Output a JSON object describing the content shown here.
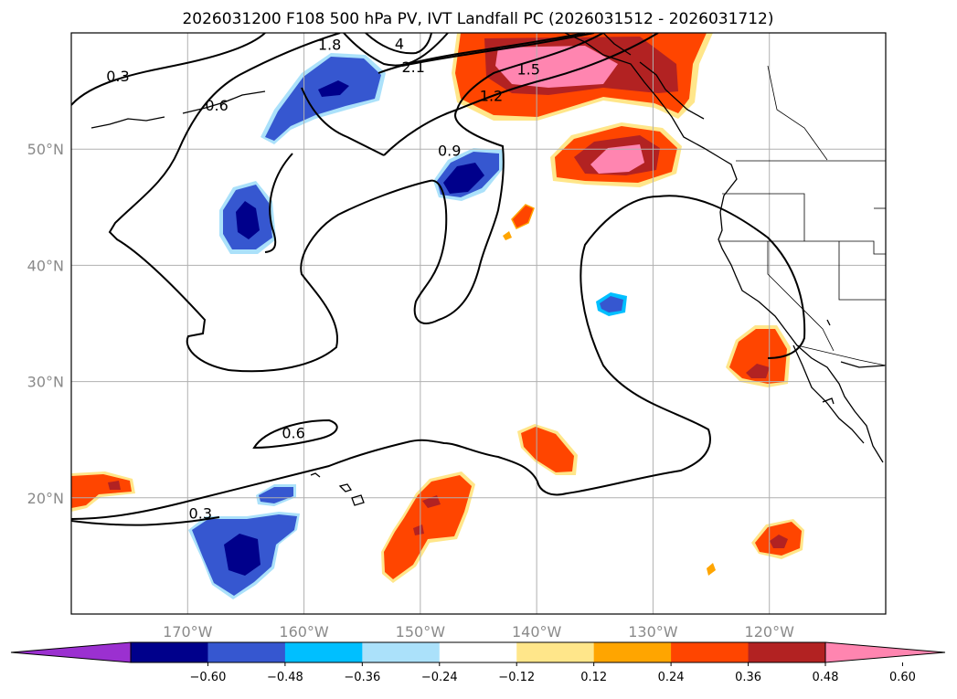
{
  "title": "2026031200 F108 500 hPa PV, IVT Landfall PC (2026031512 - 2026031712)",
  "map": {
    "lon_range": [
      -180,
      -110
    ],
    "lat_range": [
      10,
      60
    ],
    "lon_ticks": [
      {
        "lon": -170,
        "label": "170°W"
      },
      {
        "lon": -160,
        "label": "160°W"
      },
      {
        "lon": -150,
        "label": "150°W"
      },
      {
        "lon": -140,
        "label": "140°W"
      },
      {
        "lon": -130,
        "label": "130°W"
      },
      {
        "lon": -120,
        "label": "120°W"
      }
    ],
    "lat_ticks": [
      {
        "lat": 50,
        "label": "50°N"
      },
      {
        "lat": 40,
        "label": "40°N"
      },
      {
        "lat": 30,
        "label": "30°N"
      },
      {
        "lat": 20,
        "label": "20°N"
      }
    ],
    "grid": true
  },
  "contour_labels": [
    {
      "text": "0.3",
      "lon": -176,
      "lat": 56.3
    },
    {
      "text": "0.6",
      "lon": -167.5,
      "lat": 53.8
    },
    {
      "text": "0.9",
      "lon": -147.5,
      "lat": 49.9
    },
    {
      "text": "1.2",
      "lon": -143.9,
      "lat": 54.6
    },
    {
      "text": "1.5",
      "lon": -140.7,
      "lat": 56.9
    },
    {
      "text": "1.8",
      "lon": -157.8,
      "lat": 59
    },
    {
      "text": "2.1",
      "lon": -150.6,
      "lat": 57.1
    },
    {
      "text": "4",
      "lon": -151.8,
      "lat": 59.1
    },
    {
      "text": "0.6",
      "lon": -160.9,
      "lat": 25.6
    },
    {
      "text": "0.3",
      "lon": -168.9,
      "lat": 18.7
    }
  ],
  "colorbar": {
    "colors": [
      "#9b30d0",
      "#00008b",
      "#3657d0",
      "#00bfff",
      "#abe1fa",
      "#ffffff",
      "#ffe68a",
      "#ffa500",
      "#ff4500",
      "#b22222",
      "#ff85b0"
    ],
    "levels": [
      -0.6,
      -0.48,
      -0.36,
      -0.24,
      -0.12,
      0.12,
      0.24,
      0.36,
      0.48,
      0.6
    ],
    "tick_labels": [
      "−0.60",
      "−0.48",
      "−0.36",
      "−0.24",
      "−0.12",
      "0.12",
      "0.24",
      "0.36",
      "0.48",
      "0.60"
    ],
    "extend": "both"
  }
}
